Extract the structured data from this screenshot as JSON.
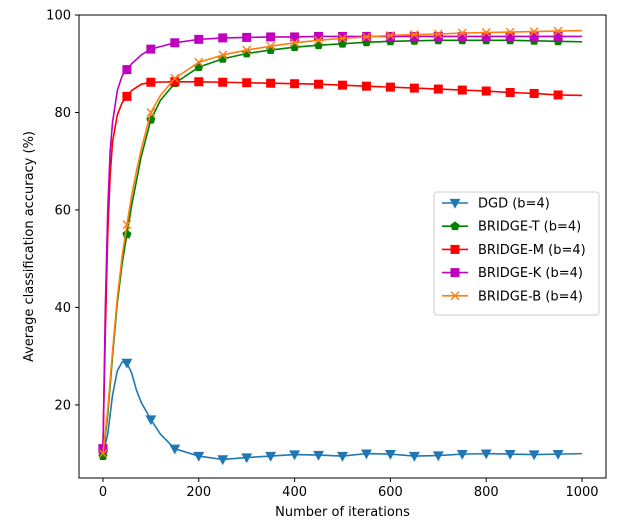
{
  "chart_data": {
    "type": "line",
    "title": "",
    "xlabel": "Number of iterations",
    "ylabel": "Average classification accuracy (%)",
    "xlim": [
      -50,
      1050
    ],
    "ylim": [
      5,
      100
    ],
    "xticks": [
      0,
      200,
      400,
      600,
      800,
      1000
    ],
    "yticks": [
      20,
      40,
      60,
      80,
      100
    ],
    "x_tick_labels": [
      "0",
      "200",
      "400",
      "600",
      "800",
      "1000"
    ],
    "y_tick_labels": [
      "20",
      "40",
      "60",
      "80",
      "100"
    ],
    "grid": false,
    "legend_position": "center-right",
    "series": [
      {
        "name": "DGD (b=4)",
        "color": "#1f77b4",
        "marker": "triangle-down",
        "x": [
          0,
          10,
          20,
          30,
          40,
          50,
          60,
          70,
          80,
          100,
          120,
          150,
          200,
          250,
          300,
          350,
          400,
          450,
          500,
          550,
          600,
          650,
          700,
          750,
          800,
          850,
          900,
          950,
          1000
        ],
        "y": [
          10,
          14,
          22,
          27,
          28.8,
          28.6,
          26.5,
          23,
          20.5,
          17,
          14,
          11,
          9.5,
          8.8,
          9.2,
          9.5,
          9.8,
          9.7,
          9.5,
          10,
          9.9,
          9.5,
          9.6,
          9.9,
          10,
          9.9,
          9.8,
          9.9,
          10
        ],
        "markers_at": [
          0,
          50,
          100,
          150,
          200,
          250,
          300,
          350,
          400,
          450,
          500,
          550,
          600,
          650,
          700,
          750,
          800,
          850,
          900,
          950
        ]
      },
      {
        "name": "BRIDGE-T (b=4)",
        "color": "#008000",
        "marker": "pentagon",
        "x": [
          0,
          10,
          20,
          30,
          40,
          50,
          60,
          70,
          80,
          100,
          120,
          150,
          200,
          250,
          300,
          350,
          400,
          450,
          500,
          550,
          600,
          650,
          700,
          750,
          800,
          850,
          900,
          950,
          1000
        ],
        "y": [
          9.5,
          18,
          30,
          41,
          49,
          55,
          61,
          66,
          71,
          78.5,
          82.5,
          86,
          89.3,
          91,
          92.1,
          92.8,
          93.4,
          93.8,
          94.1,
          94.4,
          94.6,
          94.7,
          94.8,
          94.8,
          94.8,
          94.8,
          94.7,
          94.6,
          94.5
        ],
        "markers_at": [
          0,
          50,
          100,
          150,
          200,
          250,
          300,
          350,
          400,
          450,
          500,
          550,
          600,
          650,
          700,
          750,
          800,
          850,
          900,
          950
        ]
      },
      {
        "name": "BRIDGE-M (b=4)",
        "color": "#ff0000",
        "marker": "square",
        "x": [
          0,
          5,
          10,
          15,
          20,
          30,
          40,
          50,
          60,
          80,
          100,
          150,
          200,
          250,
          300,
          350,
          400,
          450,
          500,
          550,
          600,
          650,
          700,
          750,
          800,
          850,
          900,
          950,
          1000
        ],
        "y": [
          11,
          35,
          55,
          67,
          74,
          79.5,
          82,
          83.3,
          84.5,
          85.8,
          86.2,
          86.3,
          86.3,
          86.2,
          86.1,
          86,
          85.9,
          85.8,
          85.6,
          85.4,
          85.2,
          85,
          84.8,
          84.6,
          84.4,
          84.1,
          83.9,
          83.6,
          83.5
        ],
        "markers_at": [
          0,
          50,
          100,
          150,
          200,
          250,
          300,
          350,
          400,
          450,
          500,
          550,
          600,
          650,
          700,
          750,
          800,
          850,
          900,
          950
        ]
      },
      {
        "name": "BRIDGE-K (b=4)",
        "color": "#bf00bf",
        "marker": "square",
        "x": [
          0,
          5,
          10,
          15,
          20,
          30,
          40,
          50,
          60,
          80,
          100,
          150,
          200,
          250,
          300,
          350,
          400,
          450,
          500,
          550,
          600,
          650,
          700,
          750,
          800,
          850,
          900,
          950,
          1000
        ],
        "y": [
          11,
          40,
          60,
          72,
          78,
          84.5,
          87.5,
          88.8,
          90,
          91.8,
          93,
          94.3,
          95,
          95.3,
          95.4,
          95.5,
          95.5,
          95.6,
          95.6,
          95.6,
          95.6,
          95.6,
          95.6,
          95.6,
          95.6,
          95.6,
          95.6,
          95.6,
          95.6
        ],
        "markers_at": [
          0,
          50,
          100,
          150,
          200,
          250,
          300,
          350,
          400,
          450,
          500,
          550,
          600,
          650,
          700,
          750,
          800,
          850,
          900,
          950
        ]
      },
      {
        "name": "BRIDGE-B (b=4)",
        "color": "#ff7f0e",
        "marker": "x",
        "x": [
          0,
          10,
          20,
          30,
          40,
          50,
          60,
          70,
          80,
          100,
          120,
          150,
          200,
          250,
          300,
          350,
          400,
          450,
          500,
          550,
          600,
          650,
          700,
          750,
          800,
          850,
          900,
          950,
          1000
        ],
        "y": [
          10,
          19,
          31,
          42,
          50.5,
          57,
          63,
          68,
          72.5,
          80,
          83.5,
          87,
          90.3,
          91.8,
          92.8,
          93.6,
          94.3,
          94.8,
          95.2,
          95.5,
          95.8,
          96,
          96.1,
          96.3,
          96.4,
          96.5,
          96.6,
          96.7,
          96.8
        ],
        "markers_at": [
          0,
          50,
          100,
          150,
          200,
          250,
          300,
          350,
          400,
          450,
          500,
          550,
          600,
          650,
          700,
          750,
          800,
          850,
          900,
          950
        ]
      }
    ]
  }
}
